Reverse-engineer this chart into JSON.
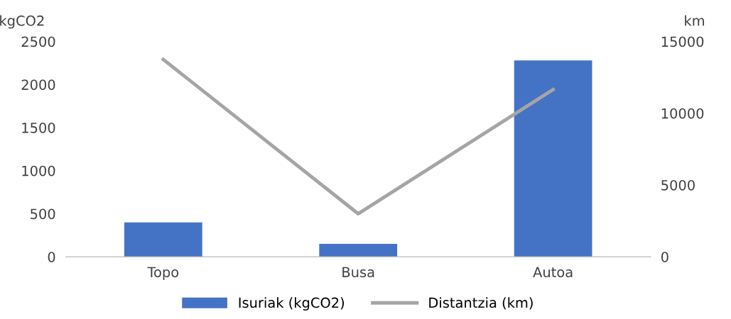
{
  "chart_data": {
    "type": "bar",
    "categories": [
      "Topo",
      "Busa",
      "Autoa"
    ],
    "series": [
      {
        "name": "Isuriak (kgCO2)",
        "color": "#4472c4",
        "values": [
          400,
          150,
          2280
        ]
      },
      {
        "name": "Distantzia (km)",
        "type": "line",
        "axis": "y2",
        "color": "#a5a5a5",
        "values": [
          13750,
          3000,
          11650
        ]
      }
    ],
    "ylabel": "kgCO2",
    "y2label": "km",
    "ylim": [
      0,
      2500
    ],
    "yticks": [
      0,
      500,
      1000,
      1500,
      2000,
      2500
    ],
    "y2lim": [
      0,
      15000
    ],
    "y2ticks": [
      0,
      5000,
      10000,
      15000
    ],
    "grid": false,
    "legend": "bottom",
    "marker": "none",
    "line_style": "solid"
  }
}
